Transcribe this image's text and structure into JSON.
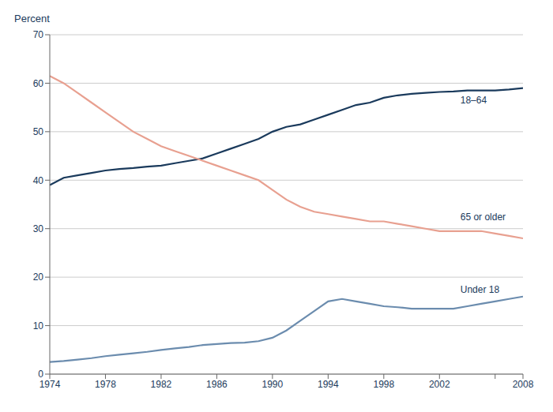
{
  "chart_data": {
    "type": "line",
    "y_label": "Percent",
    "x": [
      1974,
      1975,
      1976,
      1977,
      1978,
      1979,
      1980,
      1981,
      1982,
      1983,
      1984,
      1985,
      1986,
      1987,
      1988,
      1989,
      1990,
      1991,
      1992,
      1993,
      1994,
      1995,
      1996,
      1997,
      1998,
      1999,
      2000,
      2001,
      2002,
      2003,
      2004,
      2005,
      2006,
      2007,
      2008
    ],
    "series": [
      {
        "name": "18–64",
        "color": "#1a3a5c",
        "values": [
          39,
          40.5,
          41,
          41.5,
          42,
          42.3,
          42.5,
          42.8,
          43,
          43.5,
          44,
          44.5,
          45.5,
          46.5,
          47.5,
          48.5,
          50,
          51,
          51.5,
          52.5,
          53.5,
          54.5,
          55.5,
          56,
          57,
          57.5,
          57.8,
          58,
          58.2,
          58.3,
          58.5,
          58.5,
          58.5,
          58.7,
          59
        ]
      },
      {
        "name": "65 or older",
        "color": "#e8a090",
        "values": [
          61.5,
          60,
          58,
          56,
          54,
          52,
          50,
          48.5,
          47,
          46,
          45,
          44,
          43,
          42,
          41,
          40,
          38,
          36,
          34.5,
          33.5,
          33,
          32.5,
          32,
          31.5,
          31.5,
          31,
          30.5,
          30,
          29.5,
          29.5,
          29.5,
          29.5,
          29,
          28.5,
          28
        ]
      },
      {
        "name": "Under 18",
        "color": "#6b8cae",
        "values": [
          2.5,
          2.7,
          3,
          3.3,
          3.7,
          4,
          4.3,
          4.6,
          5,
          5.3,
          5.6,
          6,
          6.2,
          6.4,
          6.5,
          6.8,
          7.5,
          9,
          11,
          13,
          15,
          15.5,
          15,
          14.5,
          14,
          13.8,
          13.5,
          13.5,
          13.5,
          13.5,
          14,
          14.5,
          15,
          15.5,
          16
        ]
      }
    ],
    "xlim": [
      1974,
      2008
    ],
    "ylim": [
      0,
      70
    ],
    "xticks": [
      1974,
      1978,
      1982,
      1986,
      1990,
      1994,
      1998,
      2002,
      {
        "value": 2006,
        "label": null
      },
      2008
    ],
    "yticks": [
      0,
      10,
      20,
      30,
      40,
      50,
      60,
      70
    ],
    "grid": true,
    "annotations": [
      {
        "text": "18–64",
        "x": 2003.5,
        "y": 56.5
      },
      {
        "text": "65 or older",
        "x": 2003.5,
        "y": 32.5
      },
      {
        "text": "Under 18",
        "x": 2003.5,
        "y": 17.5
      }
    ]
  }
}
